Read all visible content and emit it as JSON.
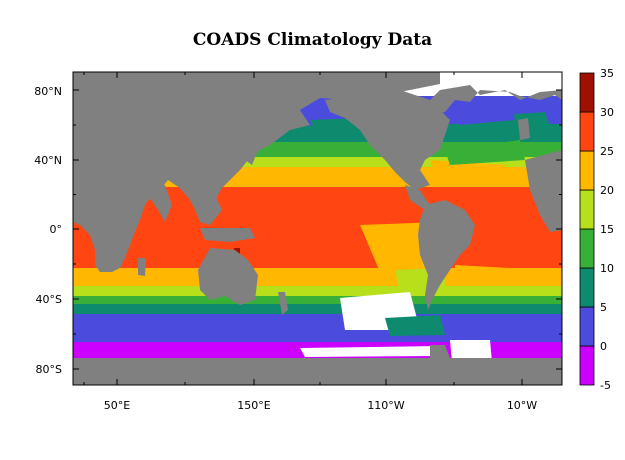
{
  "title": "COADS Climatology Data",
  "map": {
    "lat_labels": [
      "80°N",
      "40°N",
      "0°",
      "40°S",
      "80°S"
    ],
    "lon_labels": [
      "50°E",
      "150°E",
      "110°W",
      "10°W"
    ],
    "land_color": "#808080",
    "missing_color": "#ffffff"
  },
  "colorbar": {
    "levels": [
      "-5",
      "0",
      "5",
      "10",
      "15",
      "20",
      "25",
      "30",
      "35"
    ],
    "colors": [
      "#cc00ff",
      "#4b4bdd",
      "#0e8a6e",
      "#38b038",
      "#b8e01a",
      "#ffb700",
      "#ff4511",
      "#a01000"
    ]
  }
}
